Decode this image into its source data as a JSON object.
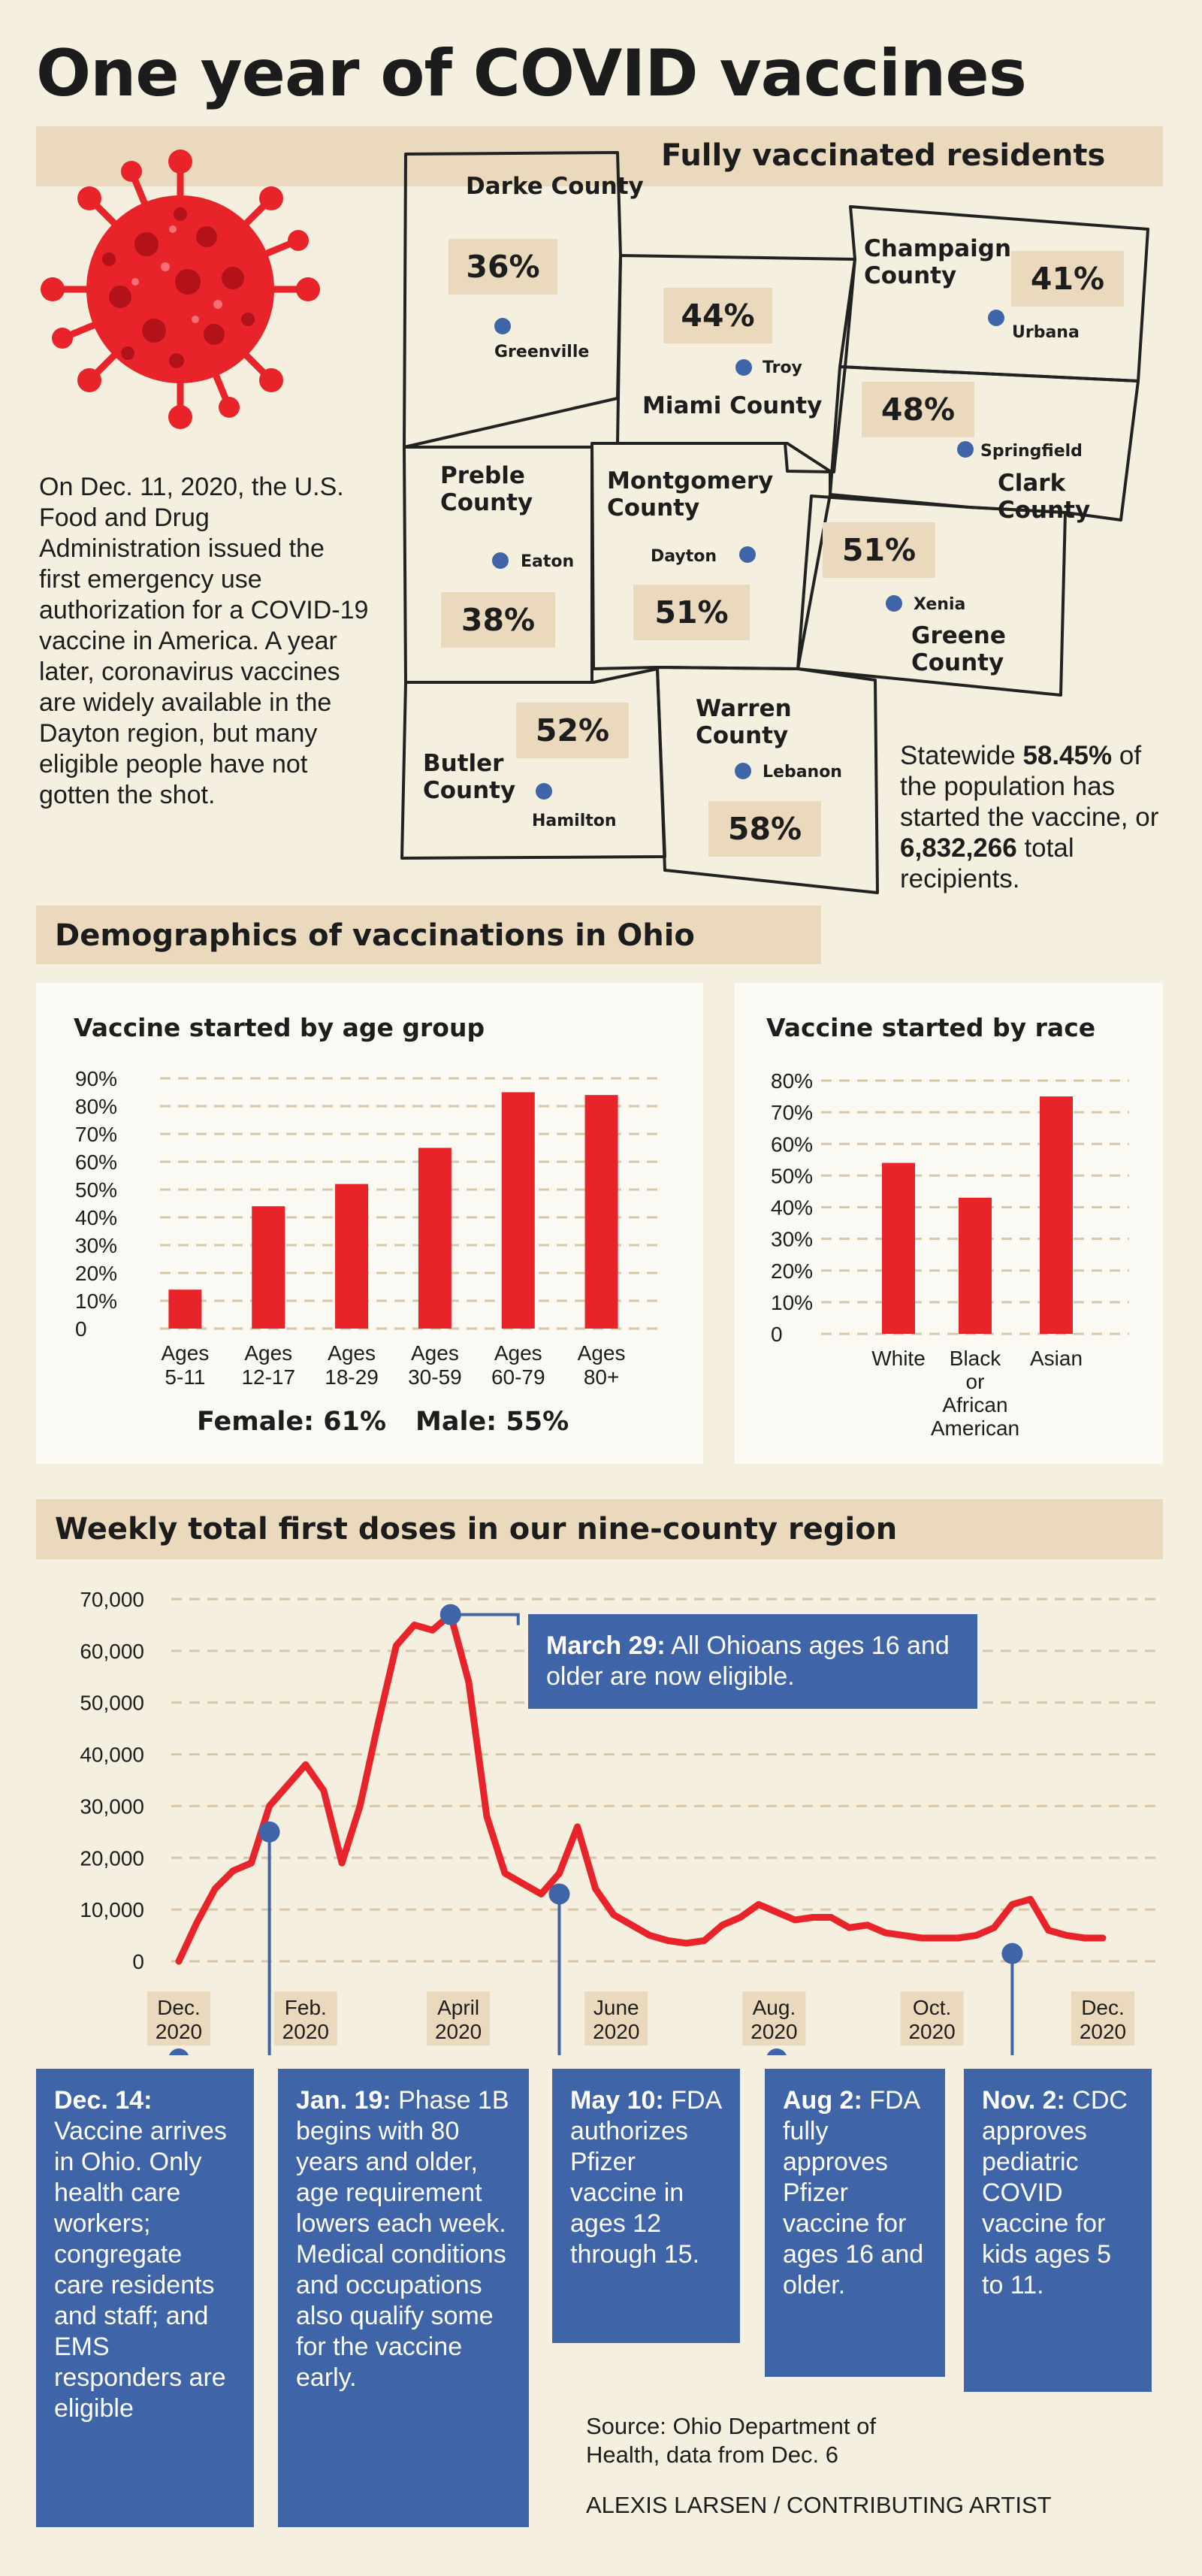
{
  "title": "One year of COVID vaccines",
  "map": {
    "header": "Fully vaccinated residents",
    "counties": [
      {
        "name": "Darke County",
        "pct": "36%",
        "city": "Greenville"
      },
      {
        "name": "Miami County",
        "pct": "44%",
        "city": "Troy"
      },
      {
        "name": "Champaign County",
        "pct": "41%",
        "city": "Urbana"
      },
      {
        "name": "Clark County",
        "pct": "48%",
        "city": "Springfield"
      },
      {
        "name": "Preble County",
        "pct": "38%",
        "city": "Eaton"
      },
      {
        "name": "Montgomery County",
        "pct": "51%",
        "city": "Dayton"
      },
      {
        "name": "Greene County",
        "pct": "51%",
        "city": "Xenia"
      },
      {
        "name": "Butler County",
        "pct": "52%",
        "city": "Hamilton"
      },
      {
        "name": "Warren County",
        "pct": "58%",
        "city": "Lebanon"
      }
    ]
  },
  "intro": "On Dec. 11, 2020, the U.S. Food and Drug Administration issued the first emergency use authorization for a COVID-19 vaccine in America. A year later, coronavirus vaccines are widely available in the Dayton region, but many eligible people have not gotten the shot.",
  "statewide": {
    "prefix": "Statewide ",
    "pct": "58.45%",
    "middle": " of the population has started the vaccine, or ",
    "total": "6,832,266",
    "suffix": " total recipients."
  },
  "demographics_header": "Demographics of vaccinations in Ohio",
  "gender": {
    "female": "Female: 61%",
    "male": "Male: 55%"
  },
  "weekly_header": "Weekly total first doses in our nine-county region",
  "annotations": {
    "march29": {
      "bold": "March 29:",
      "text": " All Ohioans ages 16 and older are now eligible."
    },
    "dec14": {
      "bold": "Dec. 14:",
      "text": " Vaccine arrives in Ohio. Only health care workers; congregate care residents and staff; and EMS responders are eligible"
    },
    "jan19": {
      "bold": "Jan. 19:",
      "text": " Phase 1B begins with 80 years and older, age requirement lowers each week. Medical conditions and occupations also qualify some for the vaccine early."
    },
    "may10": {
      "bold": "May 10:",
      "text": " FDA authorizes Pfizer vaccine in ages 12 through 15."
    },
    "aug2": {
      "bold": "Aug 2:",
      "text": " FDA fully approves Pfizer vaccine for ages 16 and older."
    },
    "nov2": {
      "bold": "Nov. 2:",
      "text": "  CDC approves pediatric COVID vaccine for kids ages 5 to 11."
    }
  },
  "source": "Source: Ohio Department of Health, data from Dec. 6",
  "credit": "ALEXIS LARSEN / CONTRIBUTING ARTIST",
  "colors": {
    "bar": "#e8232a",
    "blue": "#3f64a8",
    "band": "#ead9bd",
    "bg": "#f4efdf"
  },
  "icons": {
    "virus": "coronavirus-icon"
  },
  "chart_data": [
    {
      "type": "bar",
      "title": "Vaccine started by age group",
      "categories": [
        "Ages 5-11",
        "Ages 12-17",
        "Ages 18-29",
        "Ages 30-59",
        "Ages 60-79",
        "Ages 80+"
      ],
      "values": [
        14,
        44,
        52,
        65,
        85,
        84
      ],
      "yticks": [
        "90%",
        "80%",
        "70%",
        "60%",
        "50%",
        "40%",
        "30%",
        "20%",
        "10%",
        "0"
      ],
      "ylim": [
        0,
        90
      ]
    },
    {
      "type": "bar",
      "title": "Vaccine started by race",
      "categories": [
        "White",
        "Black or African American",
        "Asian"
      ],
      "values": [
        54,
        43,
        75
      ],
      "yticks": [
        "80%",
        "70%",
        "60%",
        "50%",
        "40%",
        "30%",
        "20%",
        "10%",
        "0"
      ],
      "ylim": [
        0,
        80
      ]
    },
    {
      "type": "line",
      "title": "Weekly total first doses in our nine-county region",
      "x": [
        "2020-12-14",
        "2020-12-21",
        "2020-12-28",
        "2021-01-04",
        "2021-01-11",
        "2021-01-18",
        "2021-01-25",
        "2021-02-01",
        "2021-02-08",
        "2021-02-15",
        "2021-02-22",
        "2021-03-01",
        "2021-03-08",
        "2021-03-15",
        "2021-03-22",
        "2021-03-29",
        "2021-04-05",
        "2021-04-12",
        "2021-04-19",
        "2021-04-26",
        "2021-05-03",
        "2021-05-10",
        "2021-05-17",
        "2021-05-24",
        "2021-05-31",
        "2021-06-07",
        "2021-06-14",
        "2021-06-21",
        "2021-06-28",
        "2021-07-05",
        "2021-07-12",
        "2021-07-19",
        "2021-07-26",
        "2021-08-02",
        "2021-08-09",
        "2021-08-16",
        "2021-08-23",
        "2021-08-30",
        "2021-09-06",
        "2021-09-13",
        "2021-09-20",
        "2021-09-27",
        "2021-10-04",
        "2021-10-11",
        "2021-10-18",
        "2021-10-25",
        "2021-11-01",
        "2021-11-08",
        "2021-11-15",
        "2021-11-22",
        "2021-11-29",
        "2021-12-06"
      ],
      "values": [
        0,
        7500,
        14000,
        17500,
        19000,
        30000,
        34000,
        38000,
        33000,
        19000,
        30000,
        46000,
        61000,
        65000,
        64000,
        67000,
        54000,
        28000,
        17000,
        15000,
        13000,
        17000,
        26000,
        14000,
        9000,
        7000,
        5000,
        4000,
        3500,
        4000,
        7000,
        8500,
        11000,
        9500,
        8000,
        8500,
        8500,
        6500,
        7000,
        5500,
        5000,
        4500,
        4500,
        4500,
        5000,
        6500,
        11000,
        12000,
        6000,
        5000,
        4500,
        4500
      ],
      "x_tick_labels": [
        [
          "Dec.",
          "2020"
        ],
        [
          "Feb.",
          "2020"
        ],
        [
          "April",
          "2020"
        ],
        [
          "June",
          "2020"
        ],
        [
          "Aug.",
          "2020"
        ],
        [
          "Oct.",
          "2020"
        ],
        [
          "Dec.",
          "2020"
        ]
      ],
      "yticks": [
        "70,000",
        "60,000",
        "50,000",
        "40,000",
        "30,000",
        "20,000",
        "10,000",
        "0"
      ],
      "ylim": [
        0,
        70000
      ]
    }
  ]
}
